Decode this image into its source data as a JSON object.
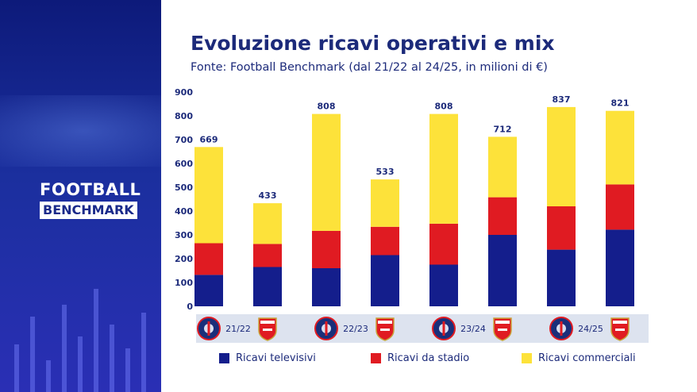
{
  "brand": {
    "line1": "FOOTBALL",
    "line2": "BENCHMARK"
  },
  "chart_data": {
    "type": "bar",
    "stacked": true,
    "title": "Evoluzione ricavi operativi e mix",
    "subtitle": "Fonte: Football Benchmark (dal 21/22 al 24/25, in milioni di €)",
    "ylim": [
      0,
      900
    ],
    "yticks": [
      0,
      100,
      200,
      300,
      400,
      500,
      600,
      700,
      800,
      900
    ],
    "grid": false,
    "legend_position": "bottom",
    "seasons": [
      "21/22",
      "22/23",
      "23/24",
      "24/25"
    ],
    "clubs": [
      "PSG",
      "Arsenal"
    ],
    "totals": [
      669,
      433,
      808,
      533,
      808,
      712,
      837,
      821
    ],
    "series": [
      {
        "name": "Ricavi televisivi",
        "color": "#141e8c",
        "values": [
          132,
          165,
          160,
          215,
          175,
          300,
          238,
          322
        ]
      },
      {
        "name": "Ricavi da stadio",
        "color": "#e01b22",
        "values": [
          133,
          97,
          157,
          119,
          172,
          158,
          182,
          190
        ]
      },
      {
        "name": "Ricavi commerciali",
        "color": "#fde23a",
        "values": [
          404,
          171,
          491,
          199,
          461,
          254,
          417,
          309
        ]
      }
    ]
  }
}
